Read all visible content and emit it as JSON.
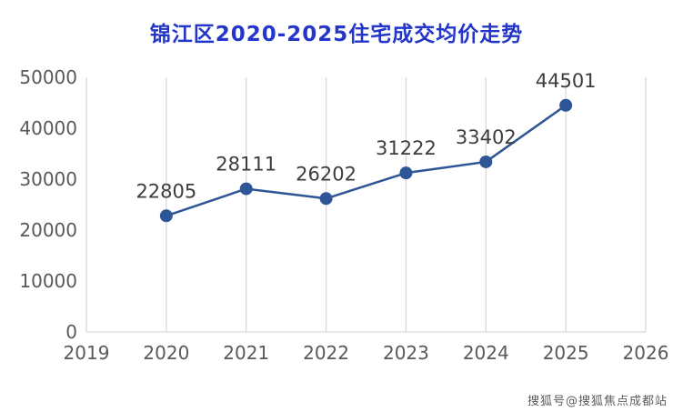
{
  "title": "锦江区2020-2025住宅成交均价走势",
  "watermark": "搜狐号@搜狐焦点成都站",
  "colors": {
    "title": "#2336c9",
    "line": "#2e5596",
    "marker": "#2e5596",
    "grid": "#d9d9d9",
    "axis_text": "#595959",
    "label_text": "#3d3d3d"
  },
  "chart_data": {
    "type": "line",
    "title": "锦江区2020-2025住宅成交均价走势",
    "x": [
      2020,
      2021,
      2022,
      2023,
      2024,
      2025
    ],
    "values": [
      22805,
      28111,
      26202,
      31222,
      33402,
      44501
    ],
    "data_labels": [
      "22805",
      "28111",
      "26202",
      "31222",
      "33402",
      "44501"
    ],
    "xlabel": "",
    "ylabel": "",
    "xticks": [
      2019,
      2020,
      2021,
      2022,
      2023,
      2024,
      2025,
      2026
    ],
    "yticks": [
      0,
      10000,
      20000,
      30000,
      40000,
      50000
    ],
    "xlim": [
      2019,
      2026
    ],
    "ylim": [
      0,
      50000
    ],
    "grid": "vertical",
    "legend": "none"
  }
}
